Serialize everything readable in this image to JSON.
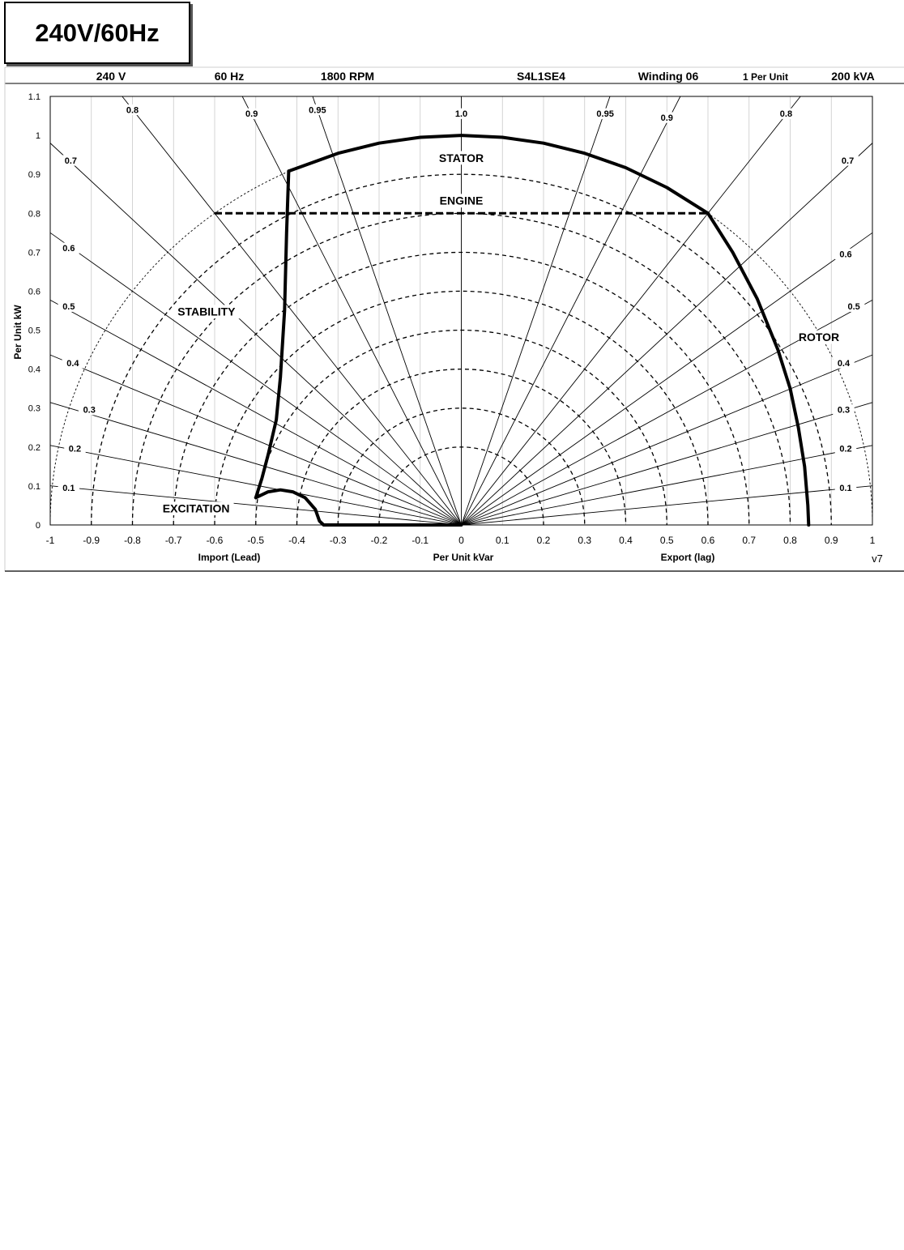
{
  "page_title": "240V/60Hz",
  "header": {
    "voltage": "240 V",
    "frequency": "60 Hz",
    "speed": "1800 RPM",
    "model": "S4L1SE4",
    "winding": "Winding 06",
    "unit": "1 Per Unit",
    "rating": "200 kVA"
  },
  "version_label": "v7",
  "chart_data": {
    "type": "line",
    "title": "",
    "xlabel": "Per Unit kVar",
    "xlabel_left": "Import (Lead)",
    "xlabel_right": "Export (lag)",
    "ylabel": "Per Unit kW",
    "xlim": [
      -1,
      1
    ],
    "ylim": [
      0,
      1.1
    ],
    "x_ticks": [
      "-1",
      "-0.9",
      "-0.8",
      "-0.7",
      "-0.6",
      "-0.5",
      "-0.4",
      "-0.3",
      "-0.2",
      "-0.1",
      "0",
      "0.1",
      "0.2",
      "0.3",
      "0.4",
      "0.5",
      "0.6",
      "0.7",
      "0.8",
      "0.9",
      "1"
    ],
    "y_ticks": [
      "0",
      "0.1",
      "0.2",
      "0.3",
      "0.4",
      "0.5",
      "0.6",
      "0.7",
      "0.8",
      "0.9",
      "1",
      "1.1"
    ],
    "grid": "vertical",
    "pu_circles": [
      0.2,
      0.3,
      0.4,
      0.5,
      0.6,
      0.7,
      0.8,
      0.9
    ],
    "power_factor_lines": [
      0.1,
      0.2,
      0.3,
      0.4,
      0.5,
      0.6,
      0.7,
      0.8,
      0.9,
      0.95,
      1.0
    ],
    "pf_labels_left": [
      {
        "text": "0.8",
        "x": -0.8,
        "y": 1.06
      },
      {
        "text": "0.9",
        "x": -0.51,
        "y": 1.05
      },
      {
        "text": "0.95",
        "x": -0.35,
        "y": 1.06
      },
      {
        "text": "0.7",
        "x": -0.95,
        "y": 0.93
      },
      {
        "text": "0.6",
        "x": -0.955,
        "y": 0.705
      },
      {
        "text": "0.5",
        "x": -0.955,
        "y": 0.555
      },
      {
        "text": "0.4",
        "x": -0.945,
        "y": 0.41
      },
      {
        "text": "0.3",
        "x": -0.905,
        "y": 0.29
      },
      {
        "text": "0.2",
        "x": -0.94,
        "y": 0.19
      },
      {
        "text": "0.1",
        "x": -0.955,
        "y": 0.09
      }
    ],
    "pf_labels_center": [
      {
        "text": "1.0",
        "x": 0,
        "y": 1.05
      }
    ],
    "pf_labels_right": [
      {
        "text": "0.95",
        "x": 0.35,
        "y": 1.05
      },
      {
        "text": "0.9",
        "x": 0.5,
        "y": 1.04
      },
      {
        "text": "0.8",
        "x": 0.79,
        "y": 1.05
      },
      {
        "text": "0.7",
        "x": 0.94,
        "y": 0.93
      },
      {
        "text": "0.6",
        "x": 0.935,
        "y": 0.69
      },
      {
        "text": "0.5",
        "x": 0.955,
        "y": 0.555
      },
      {
        "text": "0.4",
        "x": 0.93,
        "y": 0.41
      },
      {
        "text": "0.3",
        "x": 0.93,
        "y": 0.29
      },
      {
        "text": "0.2",
        "x": 0.935,
        "y": 0.19
      },
      {
        "text": "0.1",
        "x": 0.935,
        "y": 0.09
      }
    ],
    "region_labels": [
      {
        "text": "STATOR",
        "x": 0.0,
        "y": 0.935
      },
      {
        "text": "ENGINE",
        "x": 0.0,
        "y": 0.825
      },
      {
        "text": "STABILITY",
        "x": -0.62,
        "y": 0.54
      },
      {
        "text": "ROTOR",
        "x": 0.87,
        "y": 0.475
      },
      {
        "text": "EXCITATION",
        "x": -0.645,
        "y": 0.035
      }
    ],
    "series": [
      {
        "role": "stator-limit",
        "style": "solid",
        "x": [
          -0.42,
          -0.3,
          -0.2,
          -0.1,
          0.0,
          0.1,
          0.2,
          0.3,
          0.4,
          0.5,
          0.6
        ],
        "y": [
          0.908,
          0.954,
          0.98,
          0.995,
          1.0,
          0.995,
          0.98,
          0.954,
          0.917,
          0.866,
          0.8
        ]
      },
      {
        "role": "rotor-limit",
        "style": "solid",
        "x": [
          0.6,
          0.66,
          0.72,
          0.77,
          0.8,
          0.82,
          0.835,
          0.843,
          0.845
        ],
        "y": [
          0.8,
          0.7,
          0.58,
          0.45,
          0.35,
          0.25,
          0.15,
          0.05,
          0.0
        ]
      },
      {
        "role": "engine-limit",
        "style": "dashed",
        "x": [
          -0.6,
          0.6
        ],
        "y": [
          0.8,
          0.8
        ]
      },
      {
        "role": "stability-limit",
        "style": "solid",
        "x": [
          -0.42,
          -0.425,
          -0.43,
          -0.44,
          -0.45,
          -0.47,
          -0.485,
          -0.5
        ],
        "y": [
          0.908,
          0.75,
          0.55,
          0.38,
          0.27,
          0.18,
          0.12,
          0.07
        ]
      },
      {
        "role": "excitation-limit",
        "style": "solid",
        "x": [
          -0.5,
          -0.49,
          -0.47,
          -0.44,
          -0.41,
          -0.38,
          -0.355,
          -0.345,
          -0.335,
          0.0
        ],
        "y": [
          0.07,
          0.075,
          0.085,
          0.09,
          0.085,
          0.07,
          0.04,
          0.01,
          0.0,
          0.0
        ]
      }
    ]
  }
}
